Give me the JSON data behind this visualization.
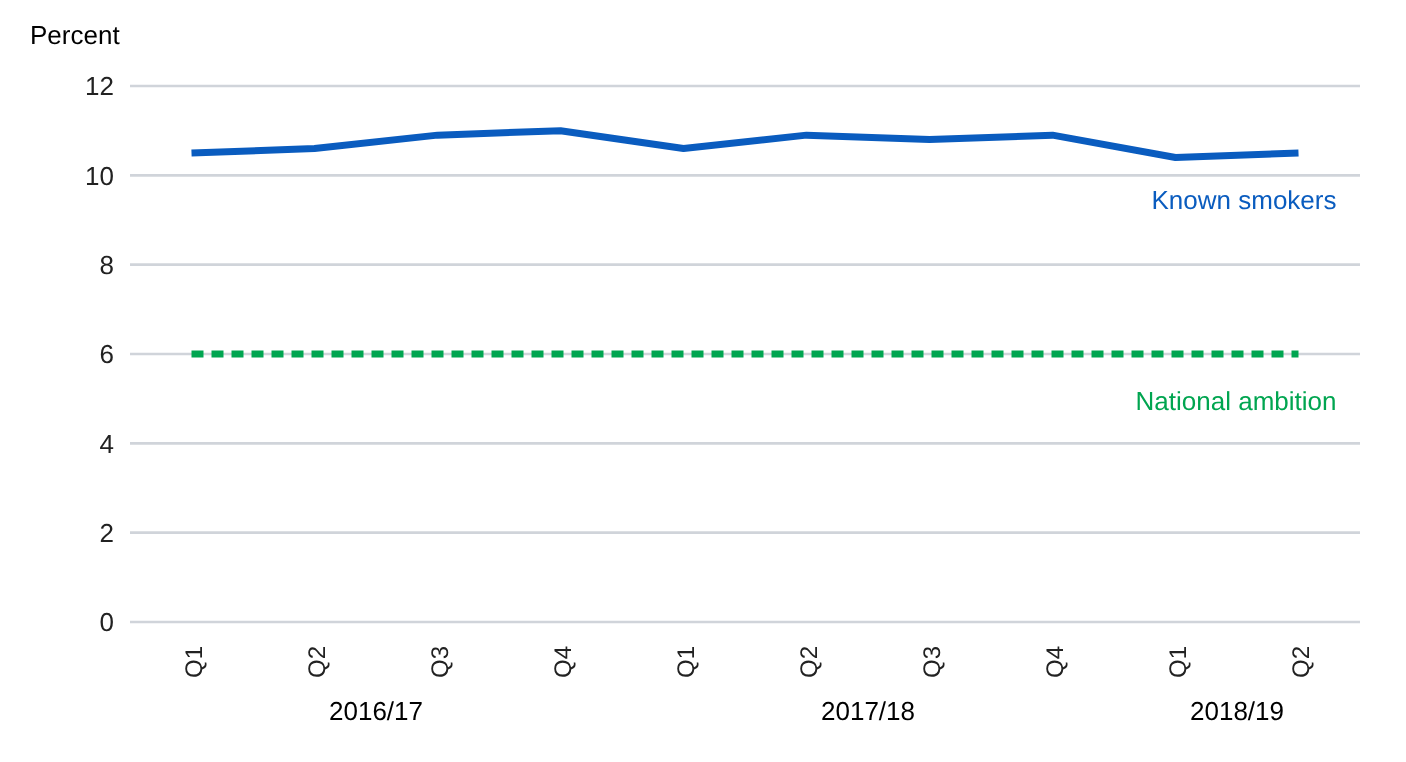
{
  "chart_data": {
    "type": "line",
    "ylabel": "Percent",
    "categories": [
      "Q1",
      "Q2",
      "Q3",
      "Q4",
      "Q1",
      "Q2",
      "Q3",
      "Q4",
      "Q1",
      "Q2"
    ],
    "annotations": [
      "2016/17",
      "2017/18",
      "2018/19"
    ],
    "ylim": [
      0,
      12
    ],
    "yticks": [
      0,
      2,
      4,
      6,
      8,
      10,
      12
    ],
    "grid": "y",
    "marker": "none",
    "series": [
      {
        "name": "Known smokers",
        "color": "#0a5cbf",
        "line_style": "solid",
        "values": [
          10.5,
          10.6,
          10.9,
          11.0,
          10.6,
          10.9,
          10.8,
          10.9,
          10.4,
          10.5
        ]
      },
      {
        "name": "National ambition",
        "color": "#00a550",
        "line_style": "dashed",
        "values": [
          6,
          6,
          6,
          6,
          6,
          6,
          6,
          6,
          6,
          6
        ]
      }
    ]
  }
}
